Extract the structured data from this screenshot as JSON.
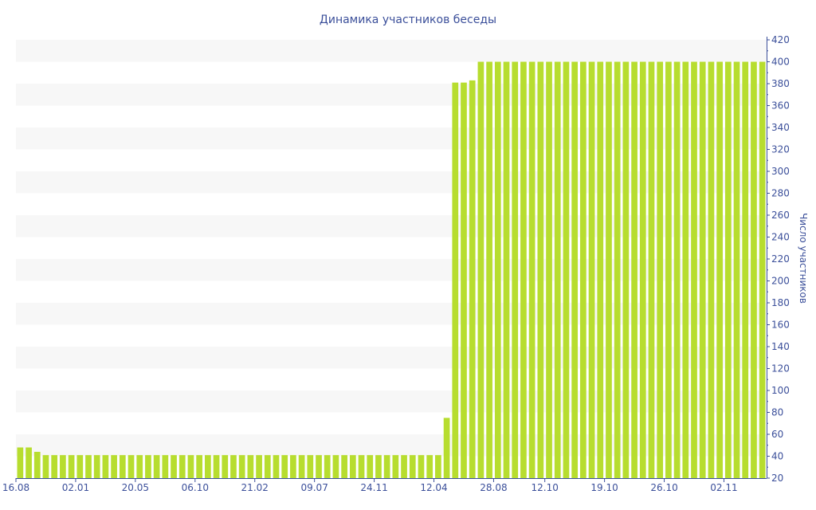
{
  "colors": {
    "bar": "#b7dd2f",
    "text": "#3b4f9a",
    "band": "#f7f7f7",
    "axis": "#3b4f9a"
  },
  "chart_data": {
    "type": "bar",
    "title": "Динамика участников беседы",
    "xlabel": "",
    "ylabel": "Число участников",
    "ylim": [
      20,
      420
    ],
    "y_ticks": [
      20,
      40,
      60,
      80,
      100,
      120,
      140,
      160,
      180,
      200,
      220,
      240,
      260,
      280,
      300,
      320,
      340,
      360,
      380,
      400,
      420
    ],
    "y_axis_position": "right",
    "grid": "alternating horizontal bands",
    "x_tick_labels": [
      {
        "label": "16.08",
        "index": 0
      },
      {
        "label": "02.01",
        "index": 7
      },
      {
        "label": "20.05",
        "index": 14
      },
      {
        "label": "06.10",
        "index": 21
      },
      {
        "label": "21.02",
        "index": 28
      },
      {
        "label": "09.07",
        "index": 35
      },
      {
        "label": "24.11",
        "index": 42
      },
      {
        "label": "12.04",
        "index": 49
      },
      {
        "label": "28.08",
        "index": 56
      },
      {
        "label": "12.10",
        "index": 62
      },
      {
        "label": "19.10",
        "index": 69
      },
      {
        "label": "26.10",
        "index": 76
      },
      {
        "label": "02.11",
        "index": 83
      }
    ],
    "values": [
      48,
      48,
      44,
      41,
      41,
      41,
      41,
      41,
      41,
      41,
      41,
      41,
      41,
      41,
      41,
      41,
      41,
      41,
      41,
      41,
      41,
      41,
      41,
      41,
      41,
      41,
      41,
      41,
      41,
      41,
      41,
      41,
      41,
      41,
      41,
      41,
      41,
      41,
      41,
      41,
      41,
      41,
      41,
      41,
      41,
      41,
      41,
      41,
      41,
      41,
      75,
      381,
      381,
      383,
      400,
      400,
      400,
      400,
      400,
      400,
      400,
      400,
      400,
      400,
      400,
      400,
      400,
      400,
      400,
      400,
      400,
      400,
      400,
      400,
      400,
      400,
      400,
      400,
      400,
      400,
      400,
      400,
      400,
      400,
      400,
      400,
      400,
      400
    ]
  }
}
